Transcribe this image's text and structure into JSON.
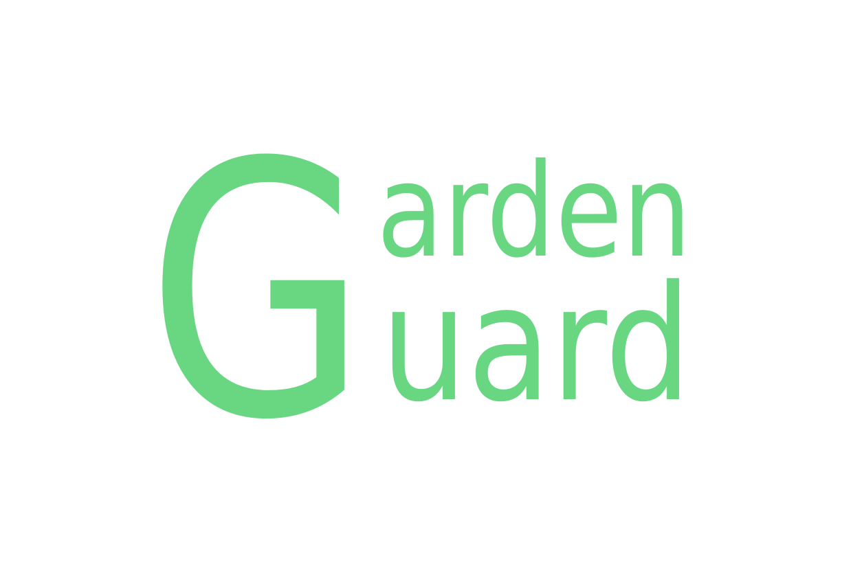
{
  "logo": {
    "initial": "G",
    "line1": "arden",
    "line2": "uard",
    "color": "#69d681"
  }
}
